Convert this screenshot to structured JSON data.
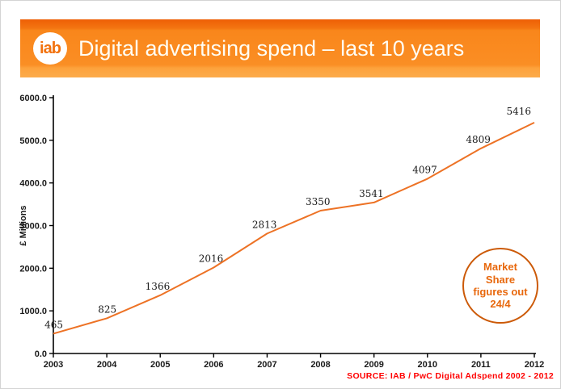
{
  "header": {
    "logo_text": "iab",
    "title": "Digital advertising spend – last 10 years",
    "banner_color_top": "#ee5f05",
    "banner_color_bottom": "#fcab4b",
    "title_color": "#fffdf4",
    "logo_text_color": "#f2720e"
  },
  "chart_data": {
    "type": "line",
    "title": "",
    "categories": [
      2003,
      2004,
      2005,
      2006,
      2007,
      2008,
      2009,
      2010,
      2011,
      2012
    ],
    "values": [
      465,
      825,
      1366,
      2016,
      2813,
      3350,
      3541,
      4097,
      4809,
      5416
    ],
    "xlabel": "",
    "ylabel": "£ Millions",
    "ylim": [
      0,
      6000
    ],
    "ytick_step": 1000,
    "ytick_decimals": 1,
    "grid": "off",
    "legend": "none",
    "line_color": "#ed7225",
    "axis_color": "#000000",
    "tick_label_color": "#1a1a1a",
    "data_label_color": "#1a1a1a"
  },
  "annotation": {
    "text": "Market Share figures out 24/4",
    "border_color": "#cc5a08",
    "text_color": "#e8680d"
  },
  "source": {
    "text": "SOURCE: IAB / PwC Digital Adspend 2002 - 2012",
    "color": "#ff0000"
  }
}
